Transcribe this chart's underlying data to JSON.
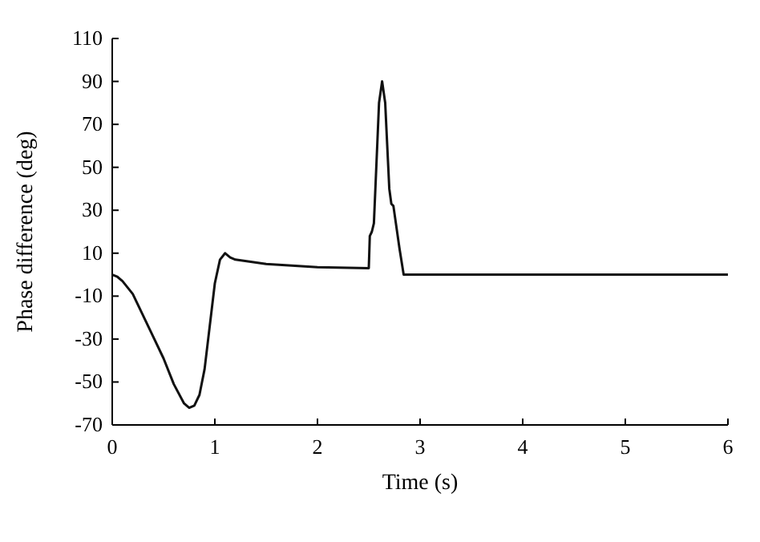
{
  "chart_data": {
    "type": "line",
    "xlabel": "Time (s)",
    "ylabel": "Phase difference (deg)",
    "xlim": [
      0,
      6
    ],
    "xticks": [
      0,
      1,
      2,
      3,
      4,
      5,
      6
    ],
    "ylim": [
      -70,
      110
    ],
    "yticks": [
      -70,
      -50,
      -30,
      -10,
      10,
      30,
      50,
      70,
      90,
      110
    ],
    "grid": false,
    "series": [
      {
        "color": "#111111",
        "x": [
          0,
          0.05,
          0.1,
          0.2,
          0.3,
          0.4,
          0.5,
          0.6,
          0.7,
          0.75,
          0.8,
          0.85,
          0.9,
          0.95,
          1.0,
          1.05,
          1.1,
          1.15,
          1.2,
          1.5,
          2.0,
          2.5,
          2.51,
          2.53,
          2.55,
          2.6,
          2.63,
          2.66,
          2.7,
          2.72,
          2.74,
          2.8,
          2.84,
          6
        ],
        "values": [
          0,
          -1,
          -3,
          -9,
          -19,
          -29,
          -39,
          -51,
          -60,
          -62,
          -61,
          -56,
          -44,
          -24,
          -4,
          7,
          10,
          8,
          7,
          5,
          3.5,
          3,
          18,
          20,
          24,
          80,
          90,
          80,
          40,
          33,
          32,
          12,
          0,
          0
        ]
      }
    ]
  }
}
